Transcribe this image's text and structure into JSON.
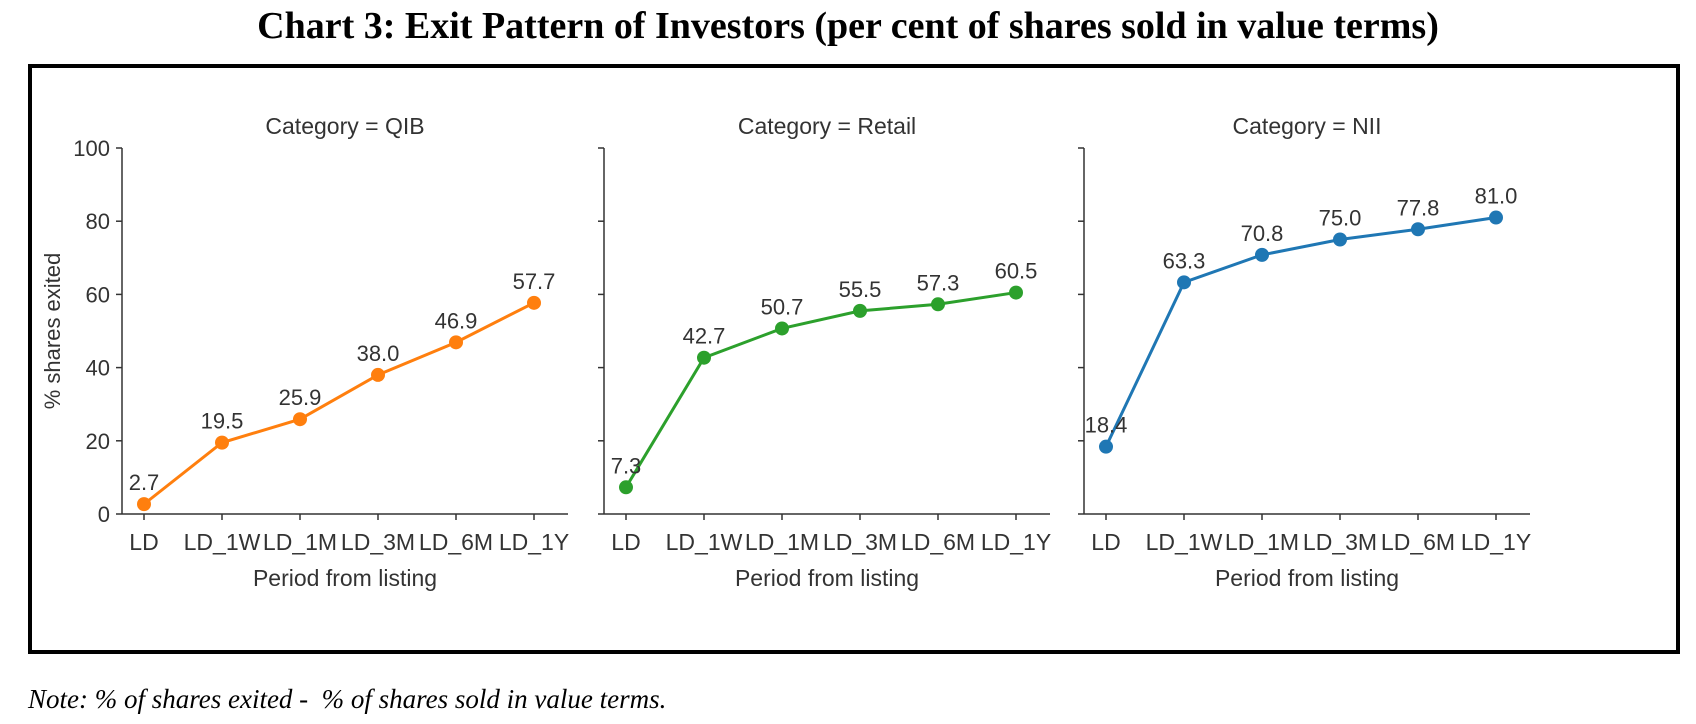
{
  "title": "Chart 3: Exit Pattern of Investors (per cent of shares sold in value terms)",
  "note": "Note: % of shares exited -  % of shares sold in value terms.",
  "chart_data": {
    "type": "line",
    "ylabel": "% shares exited",
    "xlabel": "Period from listing",
    "ylim": [
      0,
      100
    ],
    "yticks": [
      0,
      20,
      40,
      60,
      80,
      100
    ],
    "categories": [
      "LD",
      "LD_1W",
      "LD_1M",
      "LD_3M",
      "LD_6M",
      "LD_1Y"
    ],
    "grid": false,
    "panels": [
      {
        "title": "Category = QIB",
        "color": "#ff7f0e",
        "values": [
          2.7,
          19.5,
          25.9,
          38.0,
          46.9,
          57.7
        ],
        "labels": [
          "2.7",
          "19.5",
          "25.9",
          "38.0",
          "46.9",
          "57.7"
        ]
      },
      {
        "title": "Category = Retail",
        "color": "#2ca02c",
        "values": [
          7.3,
          42.7,
          50.7,
          55.5,
          57.3,
          60.5
        ],
        "labels": [
          "7.3",
          "42.7",
          "50.7",
          "55.5",
          "57.3",
          "60.5"
        ]
      },
      {
        "title": "Category = NII",
        "color": "#1f77b4",
        "values": [
          18.4,
          63.3,
          70.8,
          75.0,
          77.8,
          81.0
        ],
        "labels": [
          "18.4",
          "63.3",
          "70.8",
          "75.0",
          "77.8",
          "81.0"
        ]
      }
    ]
  }
}
